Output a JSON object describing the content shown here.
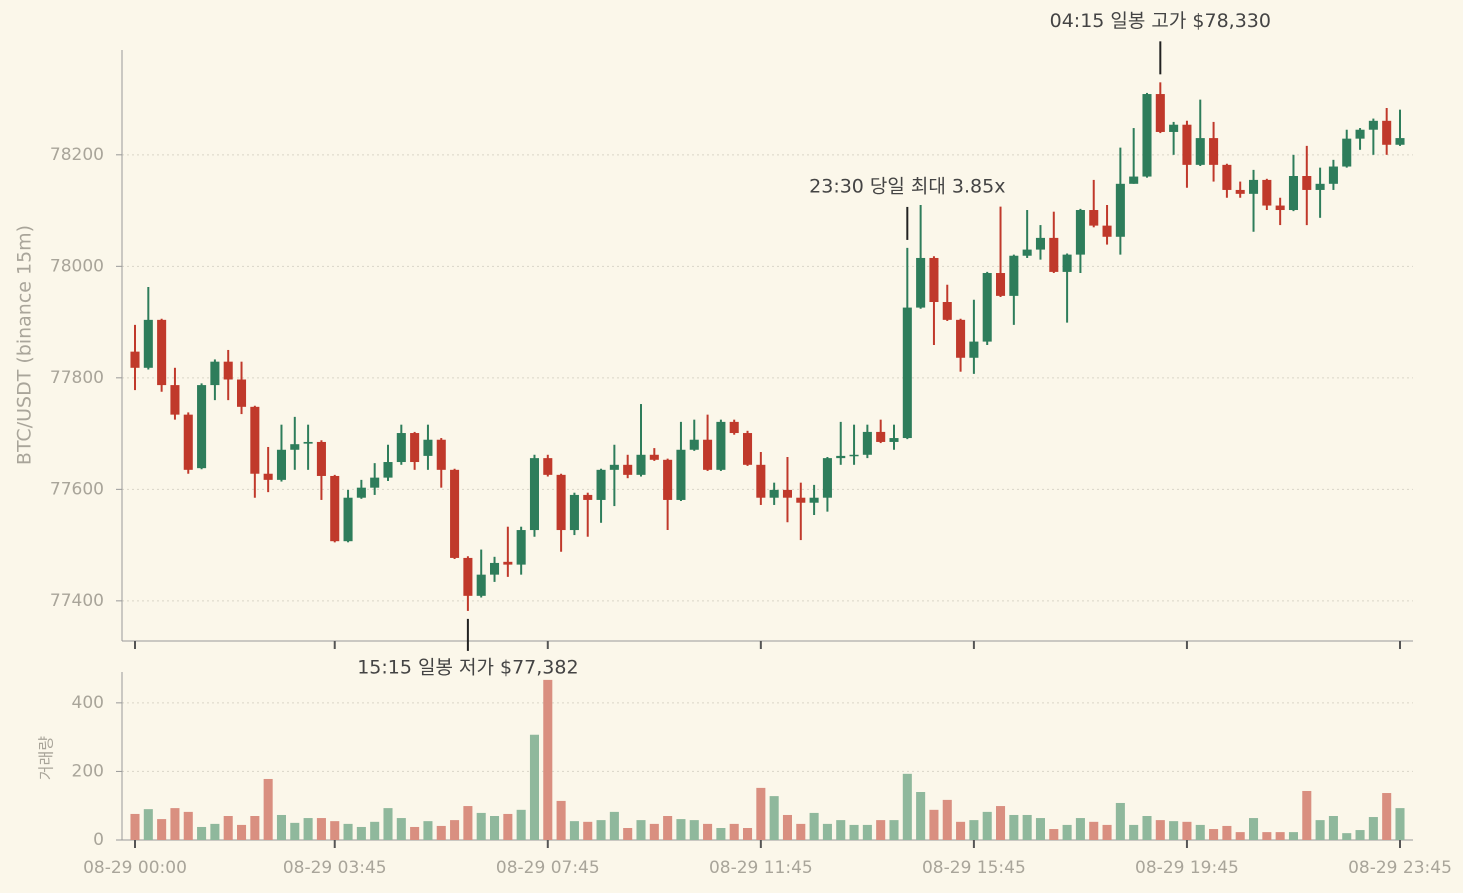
{
  "chart_data": {
    "type": "candlestick",
    "ylabel": "BTC/USDT (binance 15m)",
    "categories": [
      "08-29 00:00",
      null,
      null,
      null,
      null,
      null,
      null,
      null,
      null,
      null,
      null,
      null,
      null,
      null,
      null,
      "08-29 03:45",
      null,
      null,
      null,
      null,
      null,
      null,
      null,
      null,
      null,
      null,
      null,
      null,
      null,
      null,
      null,
      "08-29 07:45",
      null,
      null,
      null,
      null,
      null,
      null,
      null,
      null,
      null,
      null,
      null,
      null,
      null,
      null,
      null,
      "08-29 11:45",
      null,
      null,
      null,
      null,
      null,
      null,
      null,
      null,
      null,
      null,
      null,
      null,
      null,
      null,
      null,
      "08-29 15:45",
      null,
      null,
      null,
      null,
      null,
      null,
      null,
      null,
      null,
      null,
      null,
      null,
      null,
      null,
      null,
      "08-29 19:45",
      null,
      null,
      null,
      null,
      null,
      null,
      null,
      null,
      null,
      null,
      null,
      null,
      null,
      null,
      null,
      "08-29 23:45"
    ],
    "open": [
      77847,
      77818,
      77904,
      77787,
      77734,
      77638,
      77787,
      77829,
      77797,
      77748,
      77628,
      77617,
      77671,
      77682,
      77685,
      77624,
      77507,
      77585,
      77603,
      77621,
      77649,
      77701,
      77660,
      77689,
      77635,
      77477,
      77409,
      77447,
      77470,
      77465,
      77527,
      77656,
      77626,
      77527,
      77590,
      77581,
      77635,
      77644,
      77626,
      77662,
      77653,
      77581,
      77671,
      77689,
      77635,
      77721,
      77701,
      77644,
      77585,
      77599,
      77585,
      77576,
      77585,
      77656,
      77660,
      77662,
      77703,
      77685,
      77692,
      77926,
      78015,
      77936,
      77904,
      77836,
      77865,
      77988,
      77947,
      78019,
      78030,
      78051,
      77990,
      78021,
      78101,
      78073,
      78053,
      78148,
      78161,
      78309,
      78241,
      78254,
      78182,
      78230,
      78182,
      78137,
      78130,
      78155,
      78109,
      78101,
      78162,
      78137,
      78148,
      78179,
      78229,
      78245,
      78261,
      78218
    ],
    "high": [
      77895,
      77963,
      77906,
      77818,
      77738,
      77790,
      77833,
      77850,
      77829,
      77750,
      77676,
      77716,
      77730,
      77716,
      77688,
      77626,
      77599,
      77617,
      77647,
      77680,
      77716,
      77703,
      77716,
      77692,
      77637,
      77480,
      77492,
      77479,
      77533,
      77533,
      77662,
      77662,
      77628,
      77594,
      77594,
      77637,
      77680,
      77662,
      77753,
      77674,
      77655,
      77721,
      77725,
      77734,
      77725,
      77725,
      77705,
      77667,
      77612,
      77658,
      77612,
      77608,
      77658,
      77721,
      77716,
      77716,
      77725,
      77716,
      78033,
      78110,
      78018,
      77967,
      77906,
      77940,
      77990,
      78107,
      78021,
      78101,
      78074,
      78098,
      78023,
      78103,
      78155,
      78110,
      78213,
      78248,
      78311,
      78330,
      78259,
      78261,
      78299,
      78259,
      78184,
      78152,
      78173,
      78157,
      78123,
      78200,
      78216,
      78177,
      78191,
      78245,
      78248,
      78265,
      78284,
      78281
    ],
    "low": [
      77778,
      77815,
      77775,
      77725,
      77628,
      77636,
      77760,
      77760,
      77735,
      77585,
      77595,
      77614,
      77635,
      77635,
      77581,
      77505,
      77505,
      77583,
      77590,
      77615,
      77644,
      77635,
      77635,
      77603,
      77475,
      77382,
      77406,
      77434,
      77443,
      77447,
      77515,
      77623,
      77488,
      77518,
      77515,
      77540,
      77570,
      77620,
      77623,
      77651,
      77527,
      77579,
      77669,
      77633,
      77633,
      77698,
      77642,
      77572,
      77572,
      77541,
      77509,
      77554,
      77560,
      77644,
      77644,
      77656,
      77683,
      77671,
      77690,
      77924,
      77859,
      77902,
      77811,
      77807,
      77859,
      77945,
      77895,
      78015,
      78012,
      77988,
      77899,
      77988,
      78070,
      78039,
      78021,
      78148,
      78159,
      78239,
      78200,
      78141,
      78180,
      78152,
      78123,
      78123,
      78062,
      78101,
      78074,
      78099,
      78074,
      78087,
      78137,
      78177,
      78209,
      78200,
      78200,
      78216
    ],
    "close": [
      77818,
      77904,
      77787,
      77734,
      77635,
      77787,
      77829,
      77797,
      77748,
      77628,
      77617,
      77671,
      77681,
      77685,
      77624,
      77507,
      77585,
      77603,
      77621,
      77649,
      77701,
      77649,
      77689,
      77635,
      77477,
      77409,
      77447,
      77468,
      77465,
      77527,
      77656,
      77626,
      77527,
      77590,
      77581,
      77635,
      77644,
      77626,
      77662,
      77653,
      77581,
      77671,
      77689,
      77635,
      77721,
      77701,
      77644,
      77585,
      77599,
      77585,
      77576,
      77585,
      77656,
      77660,
      77662,
      77703,
      77685,
      77692,
      77926,
      78015,
      77936,
      77904,
      77836,
      77865,
      77988,
      77947,
      78019,
      78030,
      78051,
      77990,
      78021,
      78101,
      78073,
      78053,
      78148,
      78161,
      78309,
      78241,
      78254,
      78182,
      78230,
      78182,
      78137,
      78130,
      78155,
      78109,
      78101,
      78162,
      78137,
      78148,
      78179,
      78229,
      78245,
      78261,
      78218,
      78230
    ],
    "up_color": "#2e7d5b",
    "down_color": "#c0392b",
    "ylim": [
      77328,
      78388
    ],
    "yticks": [
      77400,
      77600,
      77800,
      78000,
      78200
    ],
    "grid": true,
    "annotations": [
      {
        "text": "04:15 일봉 고가 $78,330",
        "y": 78330,
        "anchor": "high"
      },
      {
        "text": "23:30 당일 최대 3.85x",
        "y": 78033,
        "anchor": "high"
      },
      {
        "text": "15:15 일봉 저가 $77,382",
        "y": 77382,
        "anchor": "low"
      }
    ],
    "volume": {
      "ylabel": "거래량",
      "values": [
        76,
        90,
        61,
        93,
        82,
        38,
        47,
        70,
        44,
        70,
        178,
        73,
        50,
        64,
        64,
        55,
        47,
        38,
        53,
        93,
        64,
        38,
        55,
        41,
        58,
        99,
        79,
        70,
        76,
        88,
        307,
        467,
        114,
        55,
        53,
        58,
        82,
        35,
        58,
        47,
        70,
        61,
        58,
        47,
        35,
        47,
        35,
        152,
        128,
        73,
        47,
        79,
        47,
        58,
        44,
        44,
        58,
        58,
        193,
        140,
        88,
        117,
        53,
        58,
        82,
        99,
        73,
        73,
        64,
        32,
        44,
        64,
        53,
        44,
        108,
        44,
        70,
        58,
        55,
        53,
        44,
        32,
        41,
        23,
        64,
        23,
        23,
        23,
        143,
        58,
        70,
        20,
        29,
        67,
        137,
        93
      ],
      "up_color": "#8fb89c",
      "down_color": "#d98f80",
      "ylim": [
        0,
        490
      ],
      "yticks": [
        0,
        200,
        400
      ]
    }
  }
}
